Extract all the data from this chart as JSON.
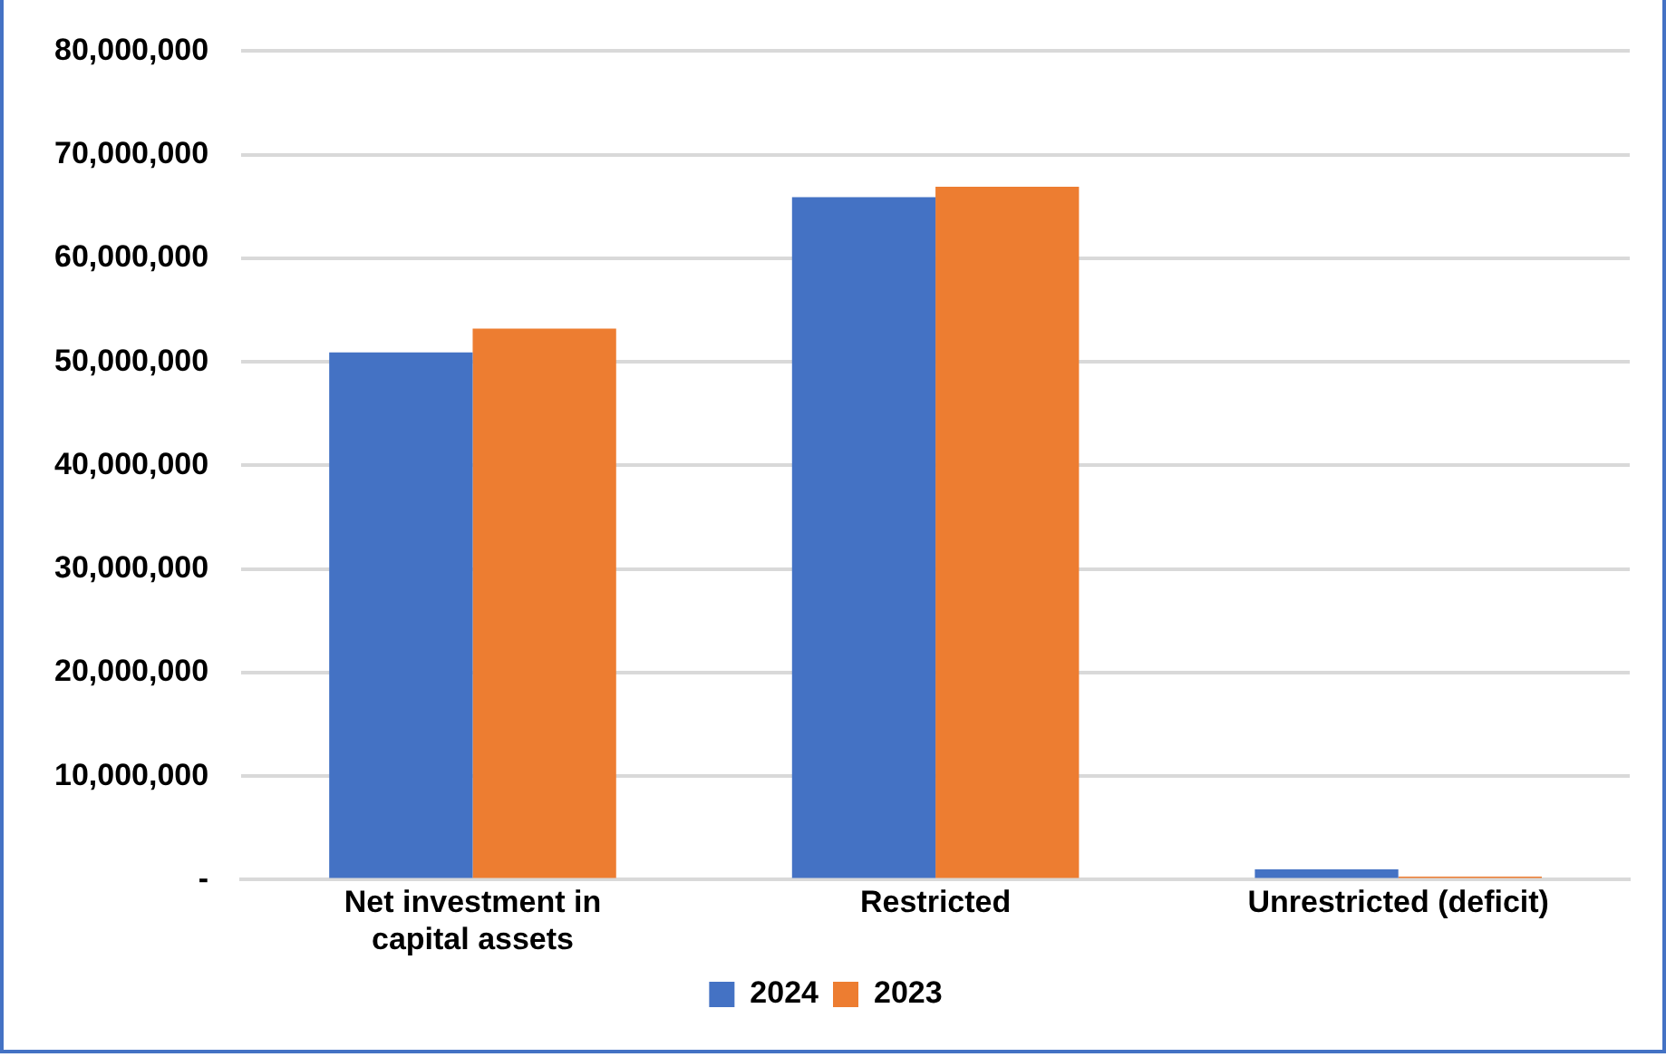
{
  "chart_data": {
    "type": "bar",
    "categories": [
      "Net investment in capital assets",
      "Restricted",
      "Unrestricted (deficit)"
    ],
    "series": [
      {
        "name": "2024",
        "color": "#4472c4",
        "values": [
          50900000,
          65900000,
          1000000
        ]
      },
      {
        "name": "2023",
        "color": "#ed7d31",
        "values": [
          53200000,
          66900000,
          300000
        ]
      }
    ],
    "ylim": [
      0,
      80000000
    ],
    "yticks": [
      {
        "value": 0,
        "label": "-"
      },
      {
        "value": 10000000,
        "label": "10,000,000"
      },
      {
        "value": 20000000,
        "label": "20,000,000"
      },
      {
        "value": 30000000,
        "label": "30,000,000"
      },
      {
        "value": 40000000,
        "label": "40,000,000"
      },
      {
        "value": 50000000,
        "label": "50,000,000"
      },
      {
        "value": 60000000,
        "label": "60,000,000"
      },
      {
        "value": 70000000,
        "label": "70,000,000"
      },
      {
        "value": 80000000,
        "label": "80,000,000"
      }
    ],
    "grid": "y",
    "legend": "bottom"
  }
}
